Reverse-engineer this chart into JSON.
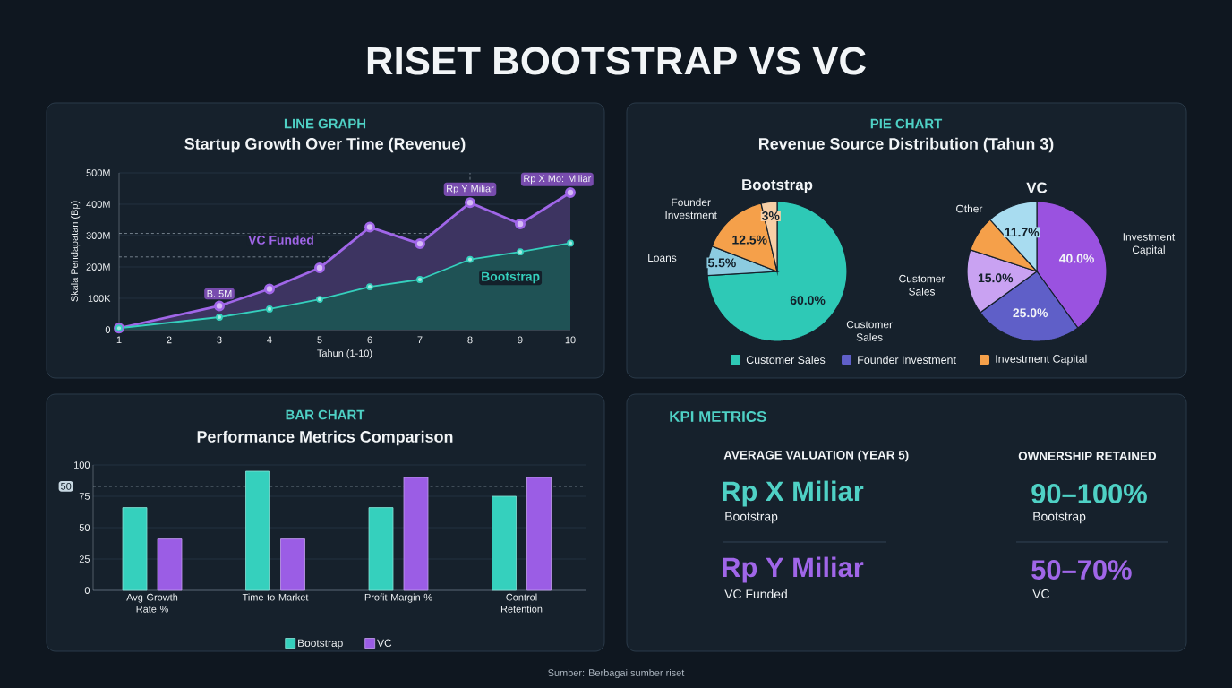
{
  "chart_data": [
    {
      "type": "other",
      "title": "RISET BOOTSTRAP VS VC",
      "annotations": [
        "Sumber: Berbagai sumber riset"
      ]
    },
    {
      "type": "area",
      "subtitle": "LINE GRAPH",
      "title": "Startup Growth Over Time (Revenue)",
      "xlabel": "Tahun (1-10)",
      "ylabel": "Skala Pendapatan (Bp)",
      "x": [
        1,
        3,
        4,
        5,
        6,
        7,
        8,
        9,
        10
      ],
      "series": [
        {
          "name": "VC Funded",
          "color": "#a066e8",
          "values": [
            5,
            76,
            130,
            197,
            327,
            274,
            405,
            337,
            437
          ]
        },
        {
          "name": "Bootstrap",
          "color": "#35d0bd",
          "values": [
            5,
            40,
            66,
            97,
            137,
            160,
            224,
            248,
            276
          ]
        }
      ],
      "xlim": [
        1,
        10
      ],
      "xticks": [
        1,
        2,
        3,
        4,
        5,
        6,
        7,
        8,
        9,
        10
      ],
      "ylim": [
        0,
        500
      ],
      "yticks": [
        {
          "value": 0,
          "label": "0"
        },
        {
          "value": 100,
          "label": "100K"
        },
        {
          "value": 200,
          "label": "200M"
        },
        {
          "value": 300,
          "label": "300M"
        },
        {
          "value": 400,
          "label": "400M"
        },
        {
          "value": 500,
          "label": "500M"
        }
      ],
      "grid": "y",
      "marker": "circle",
      "line_style": "solid",
      "ref_lines": [
        {
          "axis": "x",
          "value": 8,
          "line_style": "dashed",
          "color": "#8a97a3"
        },
        {
          "axis": "y",
          "value": 307,
          "line_style": "dashed",
          "color": "#8a97a3"
        },
        {
          "axis": "y",
          "value": 232,
          "line_style": "dashed",
          "color": "#8a97a3"
        }
      ],
      "annotations": [
        {
          "text": "B. 5M",
          "x": 3,
          "y": 76
        },
        {
          "text": "Rp Y Miliar",
          "x": 8,
          "y": 405
        },
        {
          "text": "Rp X Mo: Miliar",
          "x": 10,
          "y": 437
        }
      ]
    },
    {
      "type": "pie",
      "title": "Bootstrap",
      "categories": [
        "Customer Sales",
        "Loans",
        "Founder Investment",
        null
      ],
      "values": [
        60,
        5.5,
        12.5,
        3
      ],
      "value_labels": [
        "60.0%",
        "5.5%",
        "12.5%",
        "3%"
      ],
      "colors": [
        "#2ec9b6",
        "#8ccbe0",
        "#f5a04a",
        "#f7cfa6"
      ],
      "annotations": [
        "PIE CHART",
        "Revenue Source Distribution (Tahun 3)"
      ]
    },
    {
      "type": "pie",
      "title": "VC",
      "categories": [
        "Investment Capital",
        null,
        "Customer Sales",
        null,
        "Other"
      ],
      "values": [
        40,
        25,
        15,
        8.3,
        11.7
      ],
      "value_labels": [
        "40.0%",
        "25.0%",
        "15.0%",
        null,
        "11.7%"
      ],
      "colors": [
        "#9a52e0",
        "#5f5fc8",
        "#c9a2f2",
        "#f5a04a",
        "#a8dcf0"
      ],
      "annotations": [
        "Customer Sales",
        "Founder Investment",
        "Investment Capital"
      ]
    },
    {
      "type": "bar",
      "subtitle": "BAR CHART",
      "title": "Performance Metrics Comparison",
      "categories": [
        "Avg Growth Rate %",
        "Time to Market",
        "Profit Margin %",
        "Control Retention"
      ],
      "series": [
        {
          "name": "Bootstrap",
          "color": "#35d0bd",
          "values": [
            66,
            95,
            66,
            75
          ]
        },
        {
          "name": "VC",
          "color": "#9b5de5",
          "values": [
            41,
            41,
            90,
            90
          ]
        }
      ],
      "ylim": [
        0,
        100
      ],
      "yticks": [
        0,
        25,
        50,
        75,
        100
      ],
      "grid": "y",
      "legend": "bottom",
      "ref_lines": [
        {
          "axis": "y",
          "value": 83,
          "line_style": "dashed",
          "color": "#c8d8e2"
        }
      ],
      "annotations": [
        "50"
      ]
    },
    {
      "type": "other",
      "title": "KPI METRICS",
      "annotations": [
        "AVERAGE VALUATION (YEAR 5)",
        "Rp X Miliar",
        "Bootstrap",
        "Rp Y Miliar",
        "VC Funded",
        "OWNERSHIP RETAINED",
        "90–100%",
        "Bootstrap",
        "50–70%",
        "VC"
      ]
    }
  ]
}
